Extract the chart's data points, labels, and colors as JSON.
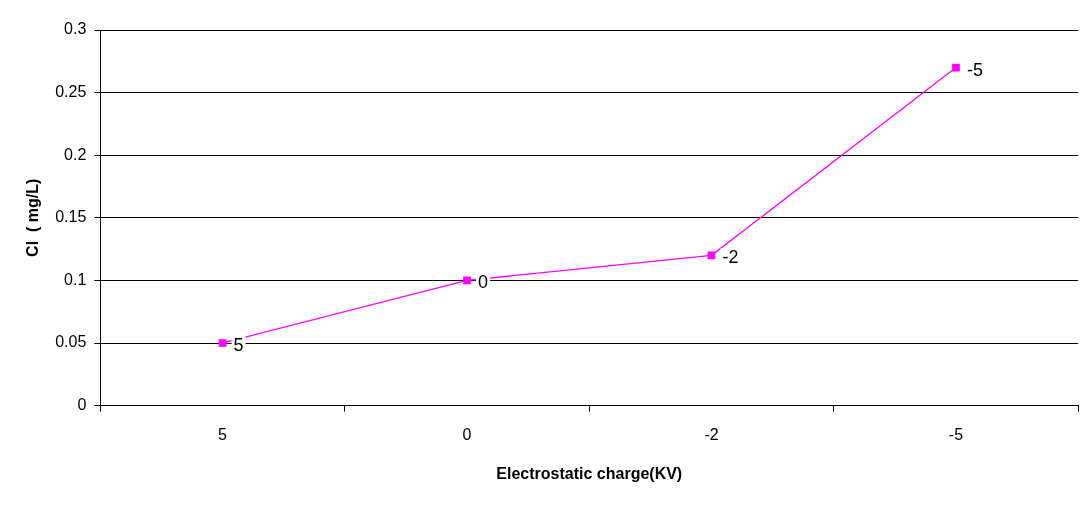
{
  "chart_data": {
    "type": "line",
    "xlabel": "Electrostatic charge(KV)",
    "ylabel": "Cl  ( mg/L)",
    "categories": [
      "5",
      "0",
      "-2",
      "-5"
    ],
    "series": [
      {
        "color": "#ff00ff",
        "values": [
          0.05,
          0.1,
          0.12,
          0.27
        ]
      }
    ],
    "annotations": [
      {
        "text": "5",
        "x": "5",
        "y": 0.05
      },
      {
        "text": "0",
        "x": "0",
        "y": 0.1
      },
      {
        "text": "-2",
        "x": "-2",
        "y": 0.12
      },
      {
        "text": "-5",
        "x": "-5",
        "y": 0.27
      }
    ],
    "ylim": [
      0,
      0.3
    ],
    "yticks": [
      0,
      0.05,
      0.1,
      0.15,
      0.2,
      0.25,
      0.3
    ],
    "grid": "y",
    "legend": false,
    "marker": "square",
    "line_style": "solid"
  }
}
